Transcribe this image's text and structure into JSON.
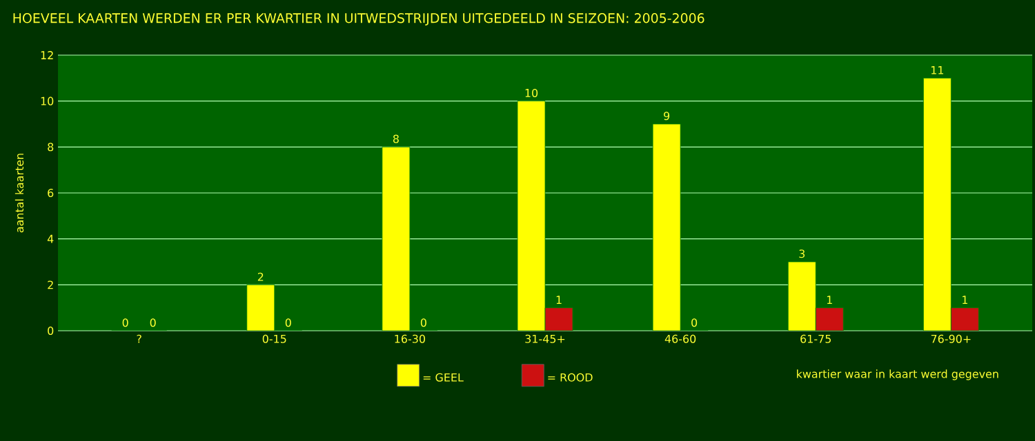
{
  "chart_data": {
    "type": "bar",
    "title": "HOEVEEL KAARTEN WERDEN ER PER KWARTIER IN UITWEDSTRIJDEN UITGEDEELD IN SEIZOEN: 2005-2006",
    "xlabel": "kwartier waar in kaart werd gegeven",
    "ylabel": "aantal kaarten",
    "categories": [
      "?",
      "0-15",
      "16-30",
      "31-45+",
      "46-60",
      "61-75",
      "76-90+"
    ],
    "series": [
      {
        "name": "= GEEL",
        "color": "#ffff00",
        "values": [
          0,
          2,
          8,
          10,
          9,
          3,
          11
        ]
      },
      {
        "name": "= ROOD",
        "color": "#cc1111",
        "values": [
          0,
          0,
          0,
          1,
          0,
          1,
          1
        ]
      }
    ],
    "ylim": [
      0,
      12
    ],
    "yticks": [
      0,
      2,
      4,
      6,
      8,
      10,
      12
    ],
    "grid": "y",
    "legend": "bottom",
    "data_labels": true
  }
}
